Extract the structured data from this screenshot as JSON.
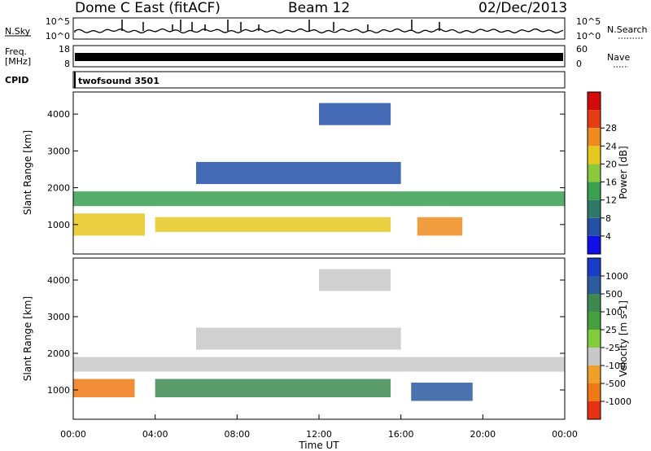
{
  "header": {
    "radar_title": "Dome C East (fitACF)",
    "beam_label": "Beam 12",
    "date_label": "02/Dec/2013"
  },
  "strips": {
    "nsky": {
      "left_label": "N.Sky",
      "right_label": "N.Search",
      "left_ticks": [
        "10^5",
        "10^0"
      ],
      "right_ticks": [
        "10^5",
        "10^0"
      ]
    },
    "freq": {
      "left_label_1": "Freq.",
      "left_label_2": "[MHz]",
      "right_label": "Nave",
      "left_ticks": [
        "18",
        "8"
      ],
      "right_ticks": [
        "60",
        "0"
      ]
    },
    "cpid": {
      "label": "CPID",
      "program": "twofsound 3501"
    }
  },
  "chart_data": [
    {
      "type": "heatmap",
      "name": "power",
      "ylabel": "Slant Range [km]",
      "ylim": [
        200,
        4600
      ],
      "yticks": [
        "1000",
        "2000",
        "3000",
        "4000"
      ],
      "xlim_hours": [
        0,
        24
      ],
      "colorbar": {
        "label": "Power [dB]",
        "tick_labels": [
          "4",
          "8",
          "12",
          "16",
          "20",
          "24",
          "28"
        ],
        "colors": [
          "#1010e6",
          "#2450a8",
          "#2e7a6a",
          "#3aa050",
          "#8cc83c",
          "#e6c81e",
          "#f08c1e",
          "#e63c14",
          "#d20a0a"
        ]
      },
      "echo_bands": [
        {
          "from_hour": 0.0,
          "to_hour": 3.5,
          "min_km": 700,
          "max_km": 1300,
          "value": 22
        },
        {
          "from_hour": 4.0,
          "to_hour": 15.5,
          "min_km": 800,
          "max_km": 1200,
          "value": 20
        },
        {
          "from_hour": 16.8,
          "to_hour": 19.0,
          "min_km": 700,
          "max_km": 1200,
          "value": 24
        },
        {
          "from_hour": 0.0,
          "to_hour": 24.0,
          "min_km": 1500,
          "max_km": 1900,
          "value": 14
        },
        {
          "from_hour": 6.0,
          "to_hour": 16.0,
          "min_km": 2100,
          "max_km": 2700,
          "value": 6
        },
        {
          "from_hour": 12.0,
          "to_hour": 15.5,
          "min_km": 3700,
          "max_km": 4300,
          "value": 4
        }
      ]
    },
    {
      "type": "heatmap",
      "name": "velocity",
      "ylabel": "Slant Range [km]",
      "xlabel": "Time UT",
      "ylim": [
        200,
        4600
      ],
      "yticks": [
        "1000",
        "2000",
        "3000",
        "4000"
      ],
      "xticks": [
        "00:00",
        "04:00",
        "08:00",
        "12:00",
        "16:00",
        "20:00",
        "00:00"
      ],
      "xlim_hours": [
        0,
        24
      ],
      "colorbar": {
        "label": "Velocity [m s-1]",
        "tick_labels": [
          "1000",
          "500",
          "100",
          "25",
          "-25",
          "-100",
          "-500",
          "-1000"
        ],
        "colors": [
          "#1a3cc8",
          "#2e5aa0",
          "#3c8a50",
          "#46a03c",
          "#82cc3c",
          "#c8c8c8",
          "#f0a028",
          "#ee7814",
          "#e63214"
        ]
      },
      "echo_bands": [
        {
          "from_hour": 0.0,
          "to_hour": 3.0,
          "min_km": 800,
          "max_km": 1300,
          "value": -100
        },
        {
          "from_hour": 4.0,
          "to_hour": 15.5,
          "min_km": 800,
          "max_km": 1300,
          "value": 100
        },
        {
          "from_hour": 16.5,
          "to_hour": 19.5,
          "min_km": 700,
          "max_km": 1200,
          "value": 500
        },
        {
          "from_hour": 0.0,
          "to_hour": 24.0,
          "min_km": 1500,
          "max_km": 1900,
          "value": 0
        },
        {
          "from_hour": 6.0,
          "to_hour": 16.0,
          "min_km": 2100,
          "max_km": 2700,
          "value": 0
        },
        {
          "from_hour": 12.0,
          "to_hour": 15.5,
          "min_km": 3700,
          "max_km": 4300,
          "value": 0
        }
      ]
    }
  ]
}
